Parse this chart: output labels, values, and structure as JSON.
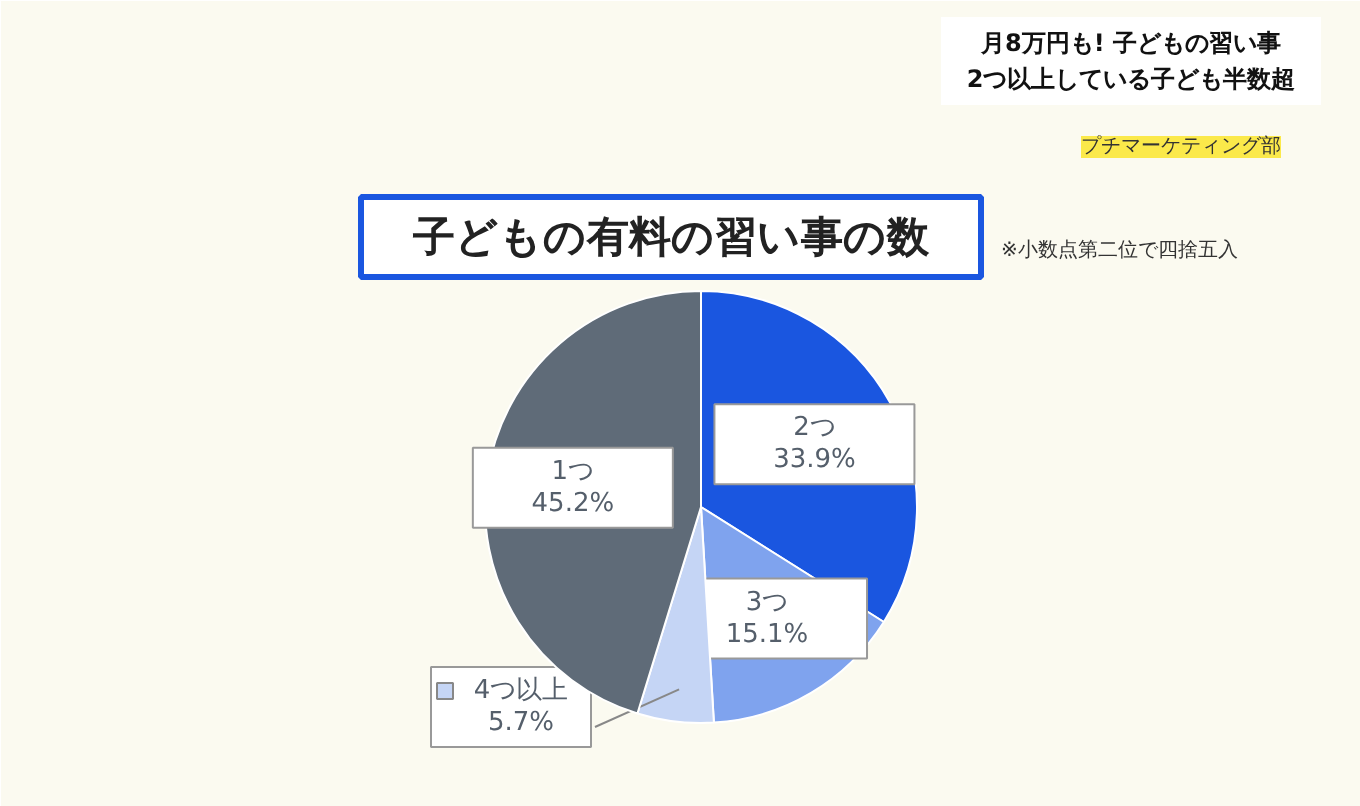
{
  "chart_data": {
    "type": "pie",
    "title": "子どもの有料の習い事の数",
    "subtitle": "月8万円も! 子どもの習い事\n2つ以上している子ども半数超",
    "categories": [
      "2つ",
      "3つ",
      "4つ以上",
      "1つ"
    ],
    "values": [
      33.9,
      15.1,
      5.7,
      45.2
    ],
    "colors": [
      "#1a56e0",
      "#7fa3ee",
      "#c5d5f5",
      "#5f6b78"
    ],
    "value_labels": [
      "33.9%",
      "15.1%",
      "5.7%",
      "45.2%"
    ],
    "annotations": [
      "プチマーケティング部",
      "※小数点第二位で四捨五入"
    ]
  }
}
